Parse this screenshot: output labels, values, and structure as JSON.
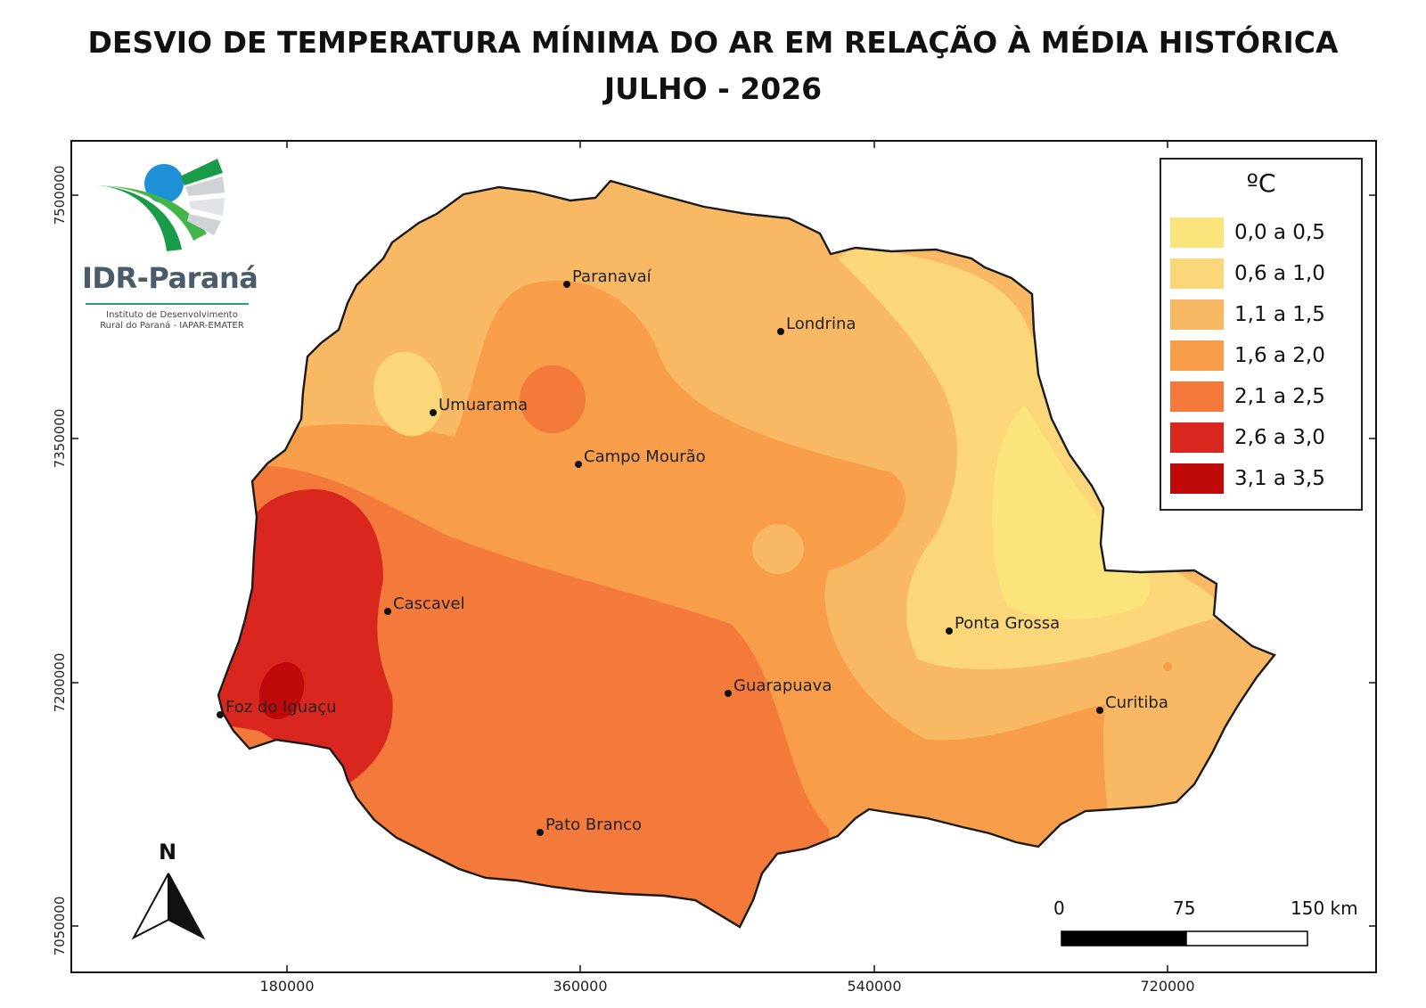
{
  "title": {
    "line1": "DESVIO DE TEMPERATURA MÍNIMA DO AR EM RELAÇÃO À MÉDIA HISTÓRICA",
    "line2": "JULHO - 2026"
  },
  "logo": {
    "name": "IDR-Paraná",
    "subtitle_line1": "Instituto de Desenvolvimento",
    "subtitle_line2": "Rural do Paraná - IAPAR-EMATER"
  },
  "axes": {
    "y_ticks": [
      "7500000",
      "7350000",
      "7200000",
      "7050000"
    ],
    "x_ticks": [
      "180000",
      "360000",
      "540000",
      "720000"
    ]
  },
  "legend": {
    "title": "ºC",
    "items": [
      {
        "label": "0,0 a 0,5",
        "color": "#fbe47c"
      },
      {
        "label": "0,6 a 1,0",
        "color": "#fbd77a"
      },
      {
        "label": "1,1 a 1,5",
        "color": "#f9b863"
      },
      {
        "label": "1,6 a 2,0",
        "color": "#f89d4a"
      },
      {
        "label": "2,1 a 2,5",
        "color": "#f37a3a"
      },
      {
        "label": "2,6 a 3,0",
        "color": "#d9271f"
      },
      {
        "label": "3,1 a 3,5",
        "color": "#c00a0a"
      }
    ]
  },
  "cities": [
    {
      "name": "Paranavaí"
    },
    {
      "name": "Londrina"
    },
    {
      "name": "Umuarama"
    },
    {
      "name": "Campo Mourão"
    },
    {
      "name": "Cascavel"
    },
    {
      "name": "Ponta Grossa"
    },
    {
      "name": "Guarapuava"
    },
    {
      "name": "Curitiba"
    },
    {
      "name": "Foz do Iguaçu"
    },
    {
      "name": "Pato Branco"
    }
  ],
  "scale_bar": {
    "labels": [
      "0",
      "75",
      "150 km"
    ]
  },
  "north_arrow": {
    "label": "N"
  }
}
